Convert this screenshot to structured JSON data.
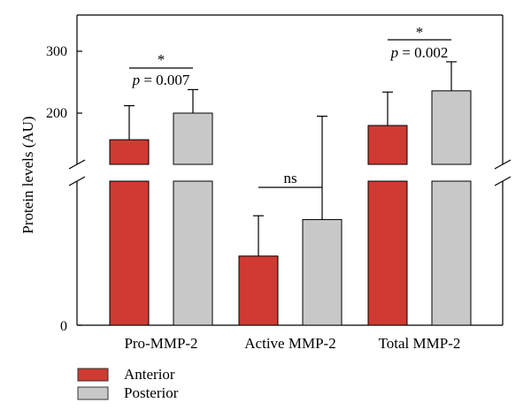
{
  "chart_data": {
    "type": "bar",
    "ylabel": "Protein levels (AU)",
    "categories": [
      "Pro-MMP-2",
      "Active MMP-2",
      "Total MMP-2"
    ],
    "y_ticks": [
      "0",
      "200",
      "300"
    ],
    "y_axis_break": true,
    "series": [
      {
        "name": "Anterior",
        "color": "#cf3a32",
        "values": [
          157,
          72,
          180
        ],
        "errors": [
          55,
          42,
          54
        ]
      },
      {
        "name": "Posterior",
        "color": "#c8c8c8",
        "values": [
          200,
          110,
          236
        ],
        "errors": [
          38,
          85,
          47
        ]
      }
    ],
    "annotations": [
      {
        "category": "Pro-MMP-2",
        "star": "*",
        "label": "p = 0.007"
      },
      {
        "category": "Active MMP-2",
        "star": "",
        "label": "ns"
      },
      {
        "category": "Total MMP-2",
        "star": "*",
        "label": "p = 0.002"
      }
    ],
    "legend_position": "bottom-left"
  }
}
